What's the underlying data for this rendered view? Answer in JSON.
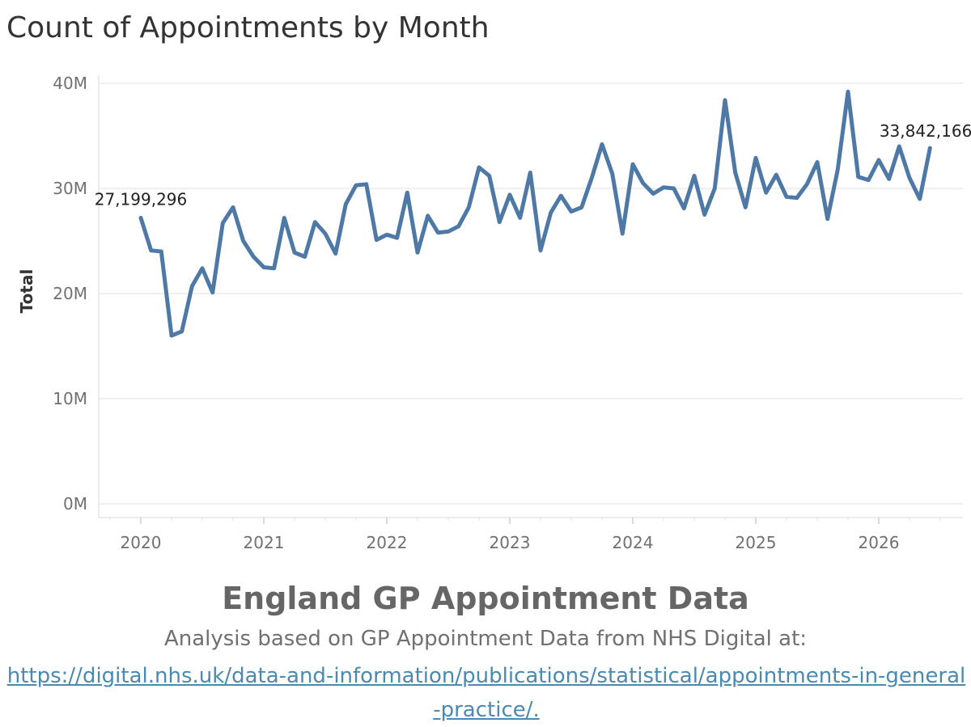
{
  "chart_data": {
    "type": "line",
    "title": "Count of Appointments by Month",
    "ylabel": "Total",
    "xlabel": "",
    "ylim": [
      0,
      40000000
    ],
    "y_ticks": [
      {
        "value": 0,
        "label": "0M"
      },
      {
        "value": 10000000,
        "label": "10M"
      },
      {
        "value": 20000000,
        "label": "20M"
      },
      {
        "value": 30000000,
        "label": "30M"
      },
      {
        "value": 40000000,
        "label": "40M"
      }
    ],
    "x_ticks": [
      "2020",
      "2021",
      "2022",
      "2023",
      "2024",
      "2025",
      "2026"
    ],
    "x_start": "2020-01",
    "x_end": "2026-06",
    "grid": true,
    "color": "#4e79a7",
    "series": [
      {
        "name": "",
        "x": [
          "2020-01",
          "2020-02",
          "2020-03",
          "2020-04",
          "2020-05",
          "2020-06",
          "2020-07",
          "2020-08",
          "2020-09",
          "2020-10",
          "2020-11",
          "2020-12",
          "2021-01",
          "2021-02",
          "2021-03",
          "2021-04",
          "2021-05",
          "2021-06",
          "2021-07",
          "2021-08",
          "2021-09",
          "2021-10",
          "2021-11",
          "2021-12",
          "2022-01",
          "2022-02",
          "2022-03",
          "2022-04",
          "2022-05",
          "2022-06",
          "2022-07",
          "2022-08",
          "2022-09",
          "2022-10",
          "2022-11",
          "2022-12",
          "2023-01",
          "2023-02",
          "2023-03",
          "2023-04",
          "2023-05",
          "2023-06",
          "2023-07",
          "2023-08",
          "2023-09",
          "2023-10",
          "2023-11",
          "2023-12",
          "2024-01",
          "2024-02",
          "2024-03",
          "2024-04",
          "2024-05",
          "2024-06",
          "2024-07",
          "2024-08",
          "2024-09",
          "2024-10",
          "2024-11",
          "2024-12",
          "2025-01",
          "2025-02",
          "2025-03",
          "2025-04",
          "2025-05",
          "2025-06",
          "2025-07",
          "2025-08",
          "2025-09",
          "2025-10",
          "2025-11",
          "2025-12",
          "2026-01",
          "2026-02",
          "2026-03",
          "2026-04",
          "2026-05",
          "2026-06"
        ],
        "values": [
          27199296,
          24100000,
          24000000,
          16000000,
          16400000,
          20700000,
          22400000,
          20100000,
          26700000,
          28200000,
          25000000,
          23500000,
          22500000,
          22400000,
          27200000,
          23900000,
          23500000,
          26800000,
          25700000,
          23800000,
          28500000,
          30300000,
          30400000,
          25100000,
          25600000,
          25300000,
          29600000,
          23900000,
          27400000,
          25800000,
          25900000,
          26400000,
          28200000,
          32000000,
          31200000,
          26800000,
          29400000,
          27200000,
          31500000,
          24100000,
          27700000,
          29300000,
          27800000,
          28200000,
          31000000,
          34200000,
          31400000,
          25700000,
          32300000,
          30500000,
          29500000,
          30100000,
          30000000,
          28100000,
          31200000,
          27500000,
          30000000,
          38400000,
          31500000,
          28200000,
          32900000,
          29600000,
          31300000,
          29200000,
          29100000,
          30400000,
          32500000,
          27100000,
          31800000,
          39200000,
          31100000,
          30800000,
          32700000,
          30900000,
          34000000,
          31000000,
          29000000,
          33842166
        ]
      }
    ],
    "annotations": [
      {
        "label": "27,199,296",
        "x": "2020-01",
        "y": 27199296
      },
      {
        "label": "33,842,166",
        "x": "2026-06",
        "y": 33842166
      }
    ]
  },
  "footer": {
    "title": "England GP Appointment Data",
    "description": "Analysis based on GP Appointment Data from NHS Digital at:",
    "link_text": "https://digital.nhs.uk/data-and-information/publications/statistical/appointments-in-general-practice/."
  }
}
